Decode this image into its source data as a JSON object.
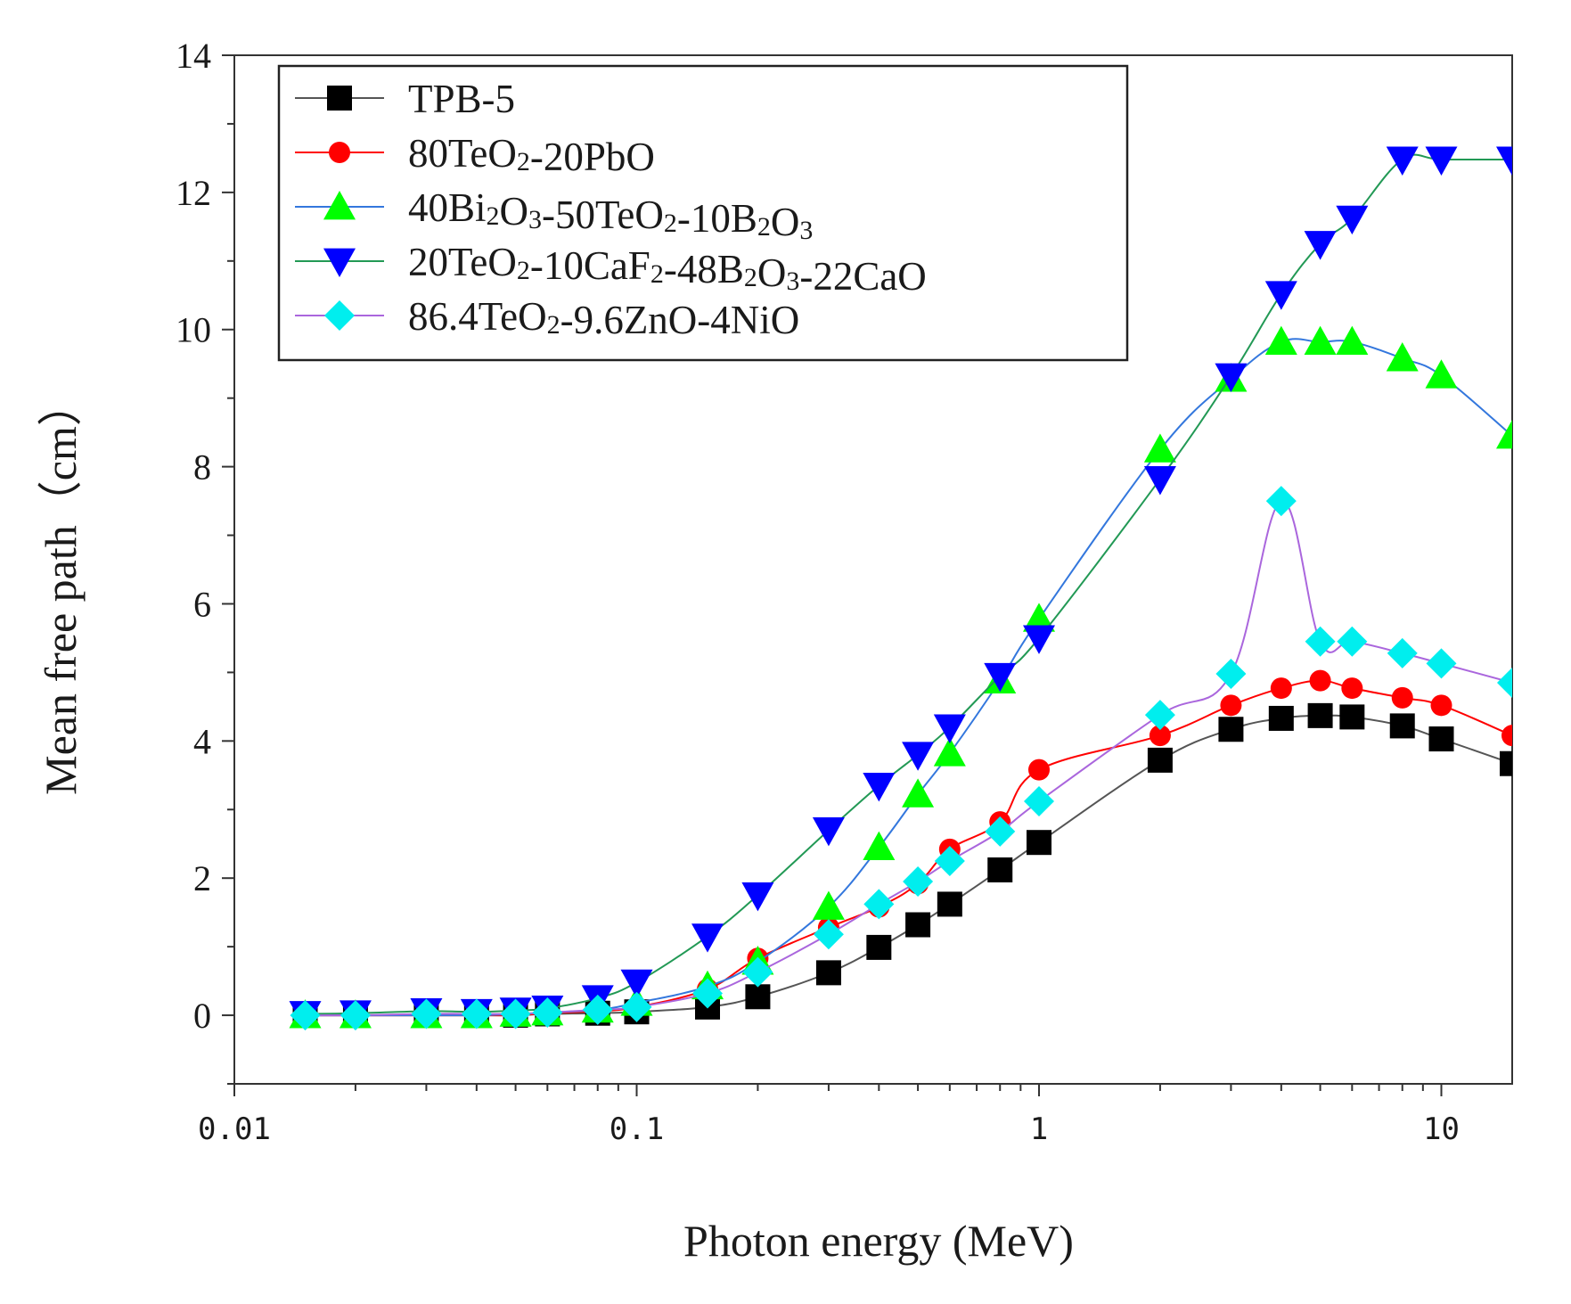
{
  "chart_data": {
    "type": "line",
    "title": "",
    "xlabel": "Photon energy (MeV)",
    "ylabel": "Mean free path（cm）",
    "xscale": "log",
    "xlim": [
      0.01,
      15
    ],
    "ylim": [
      -1,
      14
    ],
    "x_ticks": [
      0.01,
      0.1,
      1,
      10
    ],
    "x_tick_labels": [
      "0.01",
      "0.1",
      "1",
      "10"
    ],
    "y_ticks": [
      0,
      2,
      4,
      6,
      8,
      10,
      12,
      14
    ],
    "y_tick_labels": [
      "0",
      "2",
      "4",
      "6",
      "8",
      "10",
      "12",
      "14"
    ],
    "grid": false,
    "legend_position": "top-left",
    "x": [
      0.015,
      0.02,
      0.03,
      0.04,
      0.05,
      0.06,
      0.08,
      0.1,
      0.15,
      0.2,
      0.3,
      0.4,
      0.5,
      0.6,
      0.8,
      1,
      2,
      3,
      4,
      5,
      6,
      8,
      10,
      15
    ],
    "series": [
      {
        "name": "TPB-5",
        "legend": [
          {
            "text": "TPB-5"
          }
        ],
        "marker": "square",
        "color": "#000000",
        "line_color": "#555555",
        "values": [
          0.0,
          0.0,
          0.0,
          0.0,
          0.0,
          0.02,
          0.03,
          0.05,
          0.12,
          0.27,
          0.62,
          0.99,
          1.32,
          1.62,
          2.12,
          2.52,
          3.72,
          4.17,
          4.33,
          4.37,
          4.35,
          4.22,
          4.03,
          3.67
        ]
      },
      {
        "name": "80TeO2-20PbO",
        "legend": [
          {
            "text": "80TeO"
          },
          {
            "text": "2",
            "sub": true
          },
          {
            "text": "-20PbO"
          }
        ],
        "marker": "circle",
        "color": "#ff0000",
        "line_color": "#ff0000",
        "values": [
          0.0,
          0.0,
          0.0,
          0.0,
          0.0,
          0.03,
          0.06,
          0.12,
          0.38,
          0.83,
          1.28,
          1.58,
          1.92,
          2.42,
          2.82,
          3.58,
          4.08,
          4.52,
          4.77,
          4.88,
          4.77,
          4.63,
          4.52,
          4.08
        ]
      },
      {
        "name": "40Bi2O3-50TeO2-10B2O3",
        "legend": [
          {
            "text": "40Bi"
          },
          {
            "text": "2",
            "sub": true
          },
          {
            "text": "O"
          },
          {
            "text": "3",
            "sub": true
          },
          {
            "text": "-50TeO"
          },
          {
            "text": "2",
            "sub": true
          },
          {
            "text": "-10B"
          },
          {
            "text": "2",
            "sub": true
          },
          {
            "text": "O"
          },
          {
            "text": "3",
            "sub": true
          }
        ],
        "marker": "triangle-up",
        "color": "#00ff00",
        "line_color": "#3377dd",
        "values": [
          0.0,
          0.0,
          0.0,
          0.0,
          0.02,
          0.04,
          0.08,
          0.18,
          0.42,
          0.78,
          1.58,
          2.45,
          3.22,
          3.82,
          4.88,
          5.78,
          8.25,
          9.28,
          9.82,
          9.82,
          9.82,
          9.58,
          9.33,
          8.45
        ]
      },
      {
        "name": "20TeO2-10CaF2-48B2O3-22CaO",
        "legend": [
          {
            "text": "20TeO"
          },
          {
            "text": "2",
            "sub": true
          },
          {
            "text": "-10CaF"
          },
          {
            "text": "2",
            "sub": true
          },
          {
            "text": "-48B"
          },
          {
            "text": "2",
            "sub": true
          },
          {
            "text": "O"
          },
          {
            "text": "3",
            "sub": true
          },
          {
            "text": "-22CaO"
          }
        ],
        "marker": "triangle-down",
        "color": "#0000ff",
        "line_color": "#229955",
        "values": [
          0.02,
          0.03,
          0.06,
          0.05,
          0.07,
          0.1,
          0.25,
          0.48,
          1.15,
          1.75,
          2.7,
          3.35,
          3.8,
          4.2,
          4.95,
          5.5,
          7.82,
          9.32,
          10.52,
          11.25,
          11.62,
          12.48,
          12.48,
          12.48
        ]
      },
      {
        "name": "86.4TeO2-9.6ZnO-4NiO",
        "legend": [
          {
            "text": "86.4TeO"
          },
          {
            "text": "2",
            "sub": true
          },
          {
            "text": "-9.6ZnO-4NiO"
          }
        ],
        "marker": "diamond",
        "color": "#00eeee",
        "line_color": "#aa66dd",
        "values": [
          0.0,
          0.0,
          0.02,
          0.02,
          0.02,
          0.04,
          0.08,
          0.12,
          0.32,
          0.63,
          1.18,
          1.62,
          1.95,
          2.25,
          2.68,
          3.12,
          4.38,
          4.98,
          7.5,
          5.45,
          5.45,
          5.28,
          5.13,
          4.85
        ]
      }
    ]
  }
}
